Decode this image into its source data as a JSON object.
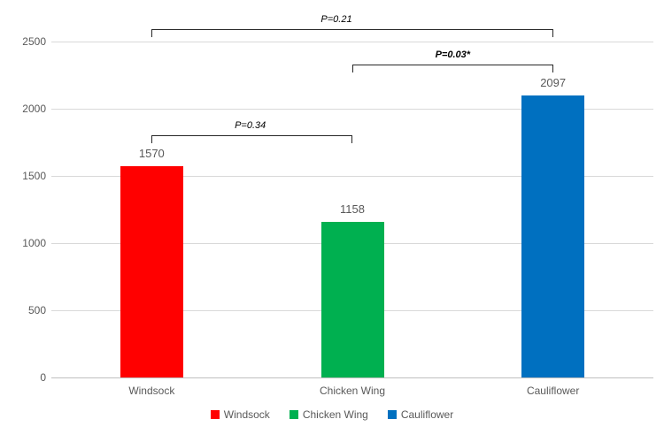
{
  "chart_data": {
    "type": "bar",
    "title": "",
    "xlabel": "",
    "ylabel": "",
    "categories": [
      "Windsock",
      "Chicken Wing",
      "Cauliflower"
    ],
    "values": [
      1570,
      1158,
      2097
    ],
    "data_labels": [
      "1570",
      "1158",
      "2097"
    ],
    "bar_colors": [
      "#ff0000",
      "#00b050",
      "#0070c0"
    ],
    "ylim": [
      0,
      2500
    ],
    "yticks": [
      0,
      500,
      1000,
      1500,
      2000,
      2500
    ],
    "grid": true,
    "legend": {
      "position": "bottom",
      "entries": [
        {
          "label": "Windsock",
          "color": "#ff0000"
        },
        {
          "label": "Chicken Wing",
          "color": "#00b050"
        },
        {
          "label": "Cauliflower",
          "color": "#0070c0"
        }
      ]
    },
    "annotations": [
      {
        "type": "significance-bracket",
        "label": "P=0.21",
        "from": 0,
        "to": 2,
        "y": 2590,
        "bold": false,
        "label_dx": -18
      },
      {
        "type": "significance-bracket",
        "label": "P=0.03*",
        "from": 1,
        "to": 2,
        "y": 2330,
        "bold": true,
        "label_dx": 0
      },
      {
        "type": "significance-bracket",
        "label": "P=0.34",
        "from": 0,
        "to": 1,
        "y": 1800,
        "bold": false,
        "label_dx": -2
      }
    ]
  },
  "colors": {
    "background": "#ffffff",
    "grid_line": "#d9d9d9",
    "axis_line": "#bfbfbf",
    "tick_text": "#595959",
    "data_label_text": "#595959",
    "category_text": "#595959",
    "legend_text": "#595959",
    "bracket_line": "#262626",
    "bracket_text": "#000000"
  }
}
